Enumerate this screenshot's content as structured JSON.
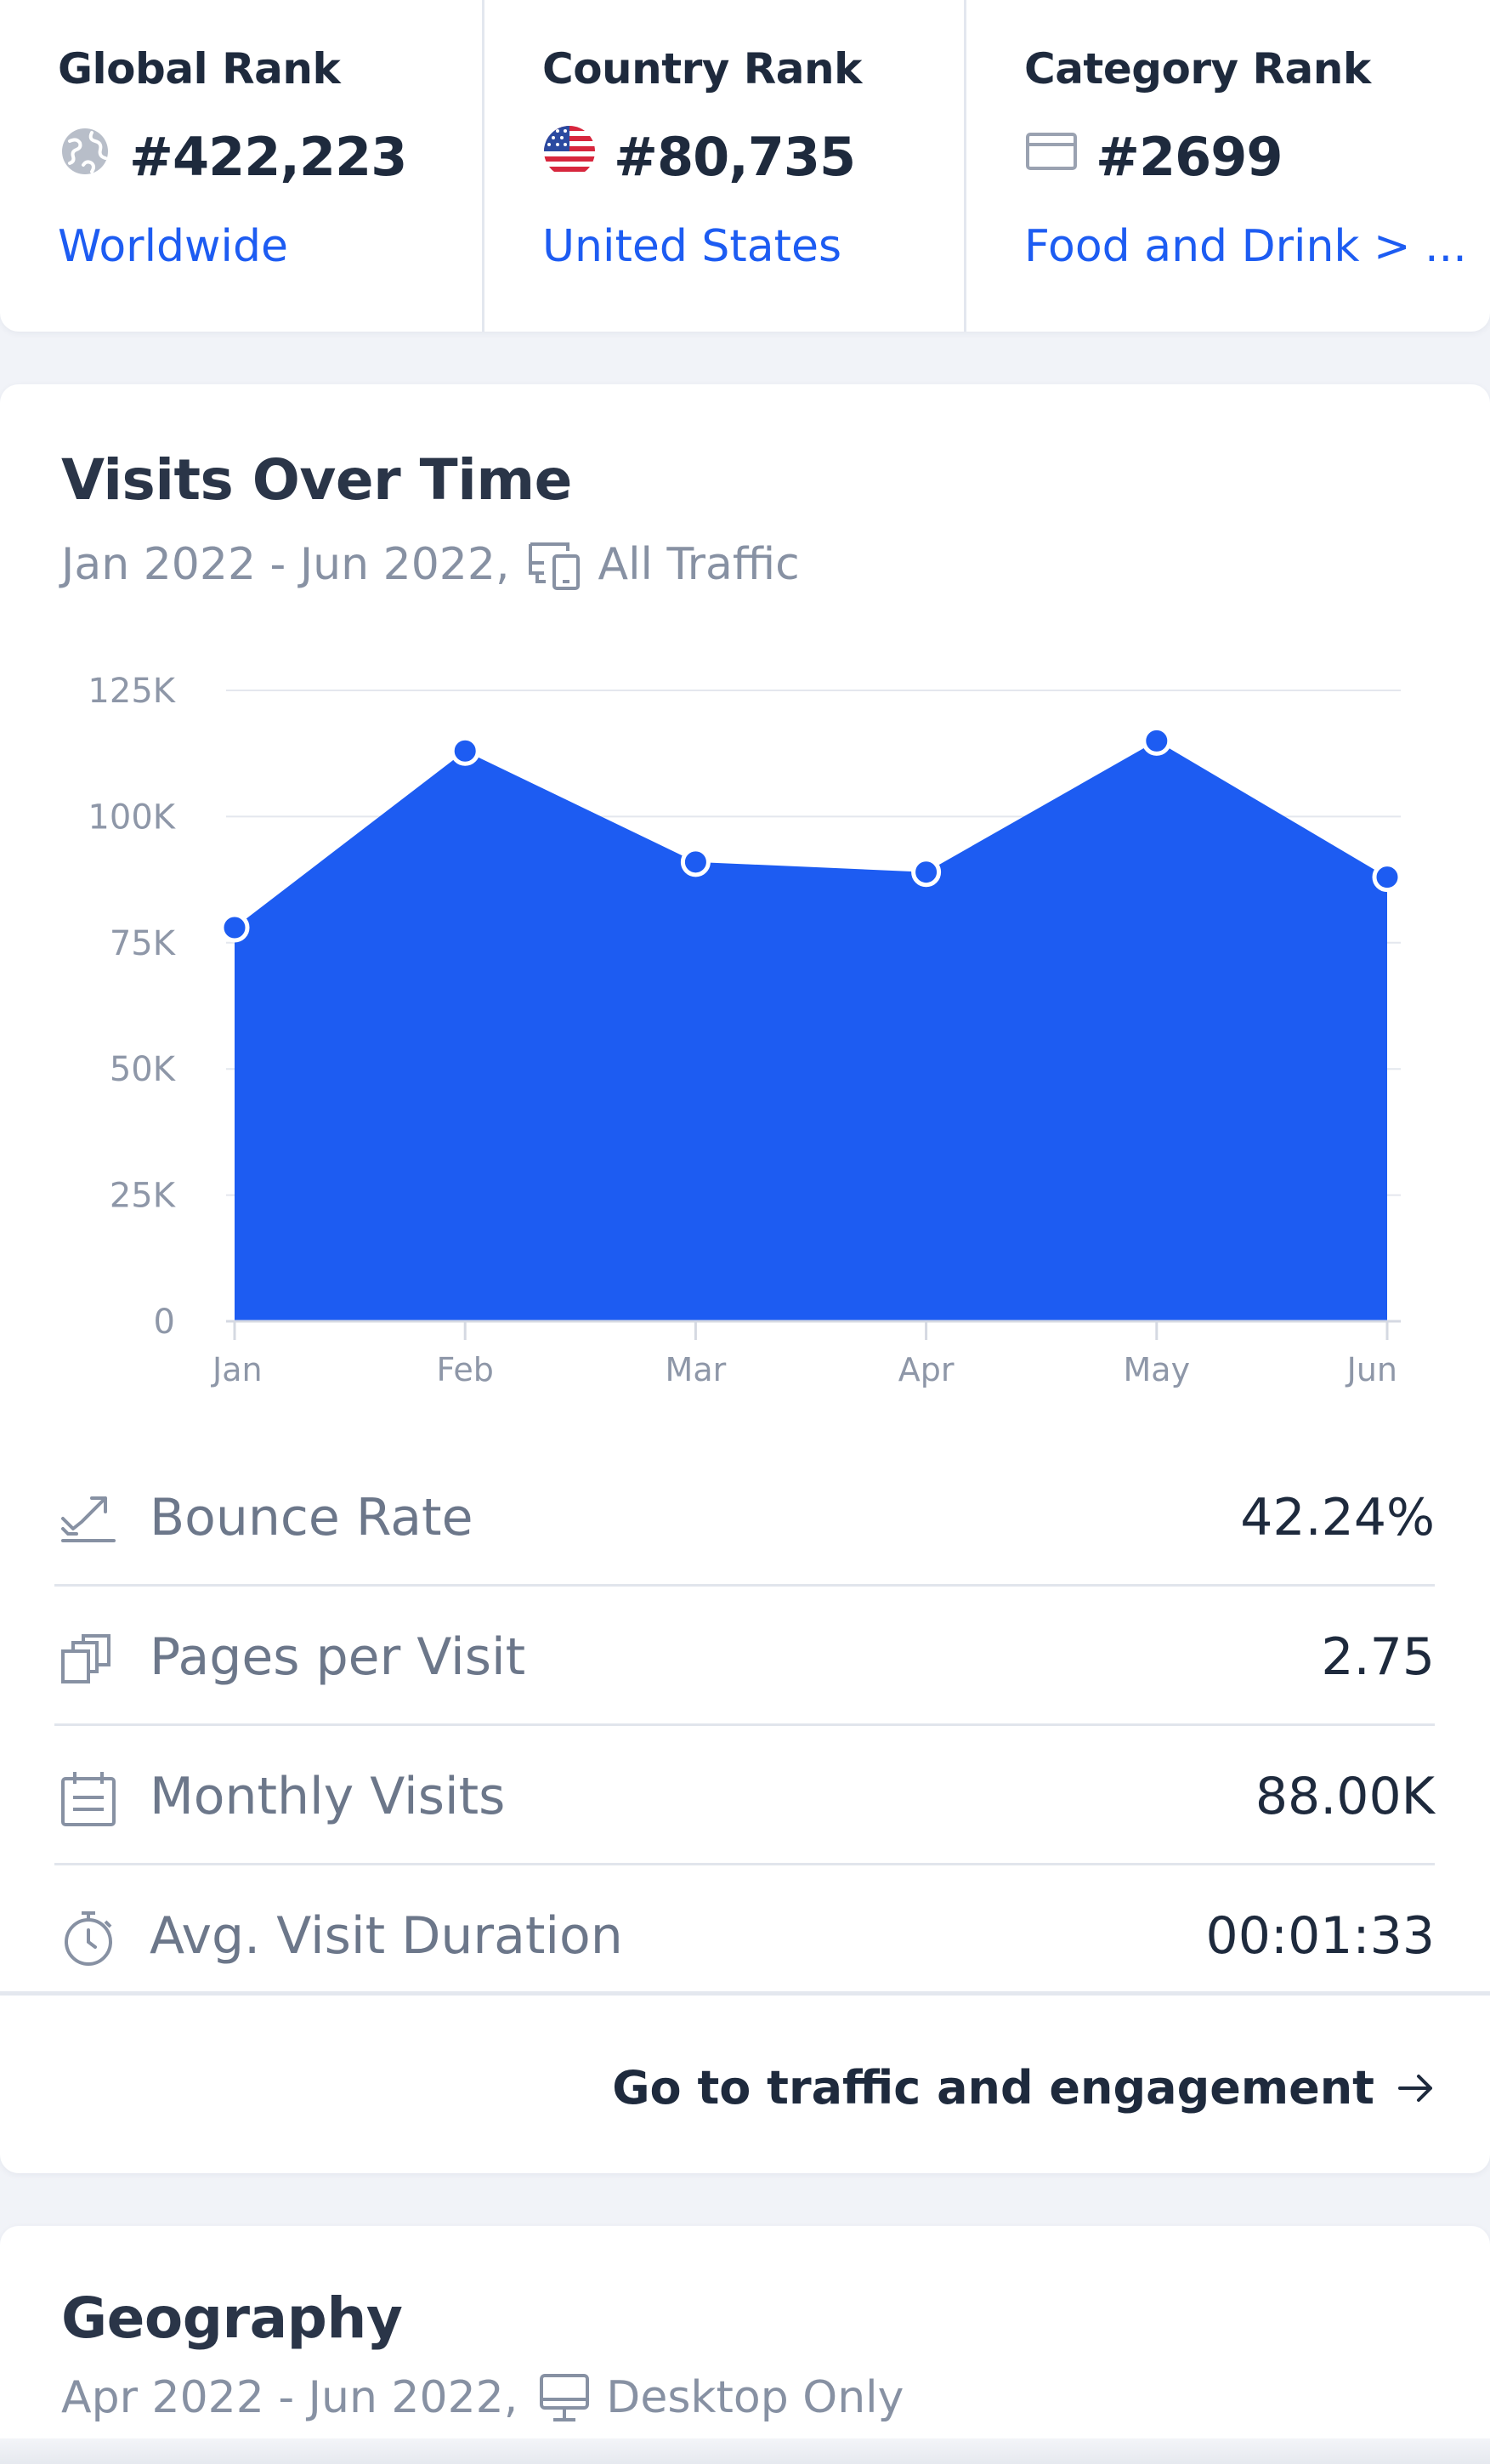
{
  "ranks": [
    {
      "label": "Global Rank",
      "value": "#422,223",
      "link": "Worldwide",
      "icon": "globe-icon"
    },
    {
      "label": "Country Rank",
      "value": "#80,735",
      "link": "United States",
      "icon": "us-flag-icon"
    },
    {
      "label": "Category Rank",
      "value": "#2699",
      "link": "Food and Drink > ...",
      "icon": "category-icon"
    }
  ],
  "visits": {
    "title": "Visits Over Time",
    "date_range": "Jan 2022 - Jun 2022,",
    "traffic": "All Traffic",
    "traffic_icon": "devices-icon"
  },
  "chart_data": {
    "type": "area",
    "title": "",
    "xlabel": "",
    "ylabel": "",
    "categories": [
      "Jan",
      "Feb",
      "Mar",
      "Apr",
      "May",
      "Jun"
    ],
    "values": [
      78000,
      113000,
      91000,
      89000,
      115000,
      88000
    ],
    "ylim": [
      0,
      125000
    ],
    "yticks": [
      0,
      25000,
      50000,
      75000,
      100000,
      125000
    ],
    "ytick_labels": [
      "0",
      "25K",
      "50K",
      "75K",
      "100K",
      "125K"
    ],
    "grid": true,
    "color": "#1d5cf2"
  },
  "metrics": [
    {
      "label": "Bounce Rate",
      "value": "42.24%",
      "icon": "bounce-icon"
    },
    {
      "label": "Pages per Visit",
      "value": "2.75",
      "icon": "pages-icon"
    },
    {
      "label": "Monthly Visits",
      "value": "88.00K",
      "icon": "calendar-icon"
    },
    {
      "label": "Avg. Visit Duration",
      "value": "00:01:33",
      "icon": "stopwatch-icon"
    }
  ],
  "goto": {
    "label": "Go to traffic and engagement"
  },
  "geography": {
    "title": "Geography",
    "date_range": "Apr 2022 - Jun 2022,",
    "traffic": "Desktop Only",
    "traffic_icon": "desktop-icon"
  },
  "colors": {
    "accent": "#1d5cf2",
    "text": "#1e2a3d",
    "muted": "#8791a3"
  }
}
